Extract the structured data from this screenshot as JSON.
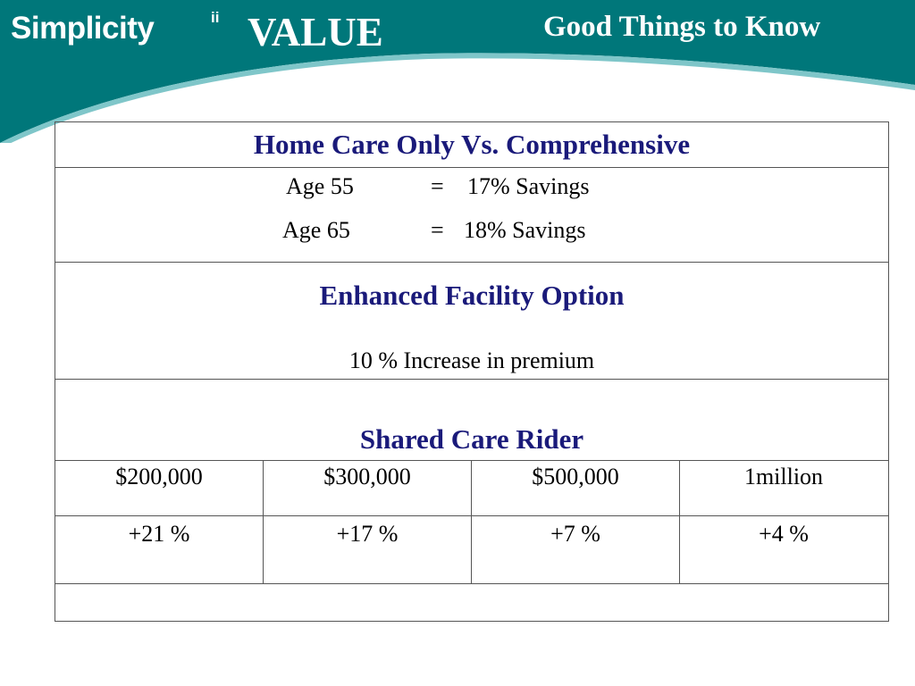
{
  "header": {
    "brand": "Simplicity",
    "brand_mark": "ii",
    "brand_value": "VALUE",
    "topic": "Good Things to Know",
    "colors": {
      "banner": "#00777a",
      "stripe": "#2e9aa0",
      "heading_text": "#1a1a7a"
    }
  },
  "table": {
    "home_care": {
      "heading": "Home Care Only Vs. Comprehensive",
      "rows": [
        {
          "age": "Age 55",
          "eq": "=",
          "savings": "17% Savings"
        },
        {
          "age": "Age 65",
          "eq": "=",
          "savings": "18% Savings"
        }
      ]
    },
    "enhanced": {
      "heading": "Enhanced Facility Option",
      "detail": "10 % Increase in premium"
    },
    "shared": {
      "heading": "Shared Care Rider",
      "amounts": [
        "$200,000",
        "$300,000",
        "$500,000",
        "1million"
      ],
      "increases": [
        "+21 %",
        "+17 %",
        "+7 %",
        "+4 %"
      ]
    }
  }
}
